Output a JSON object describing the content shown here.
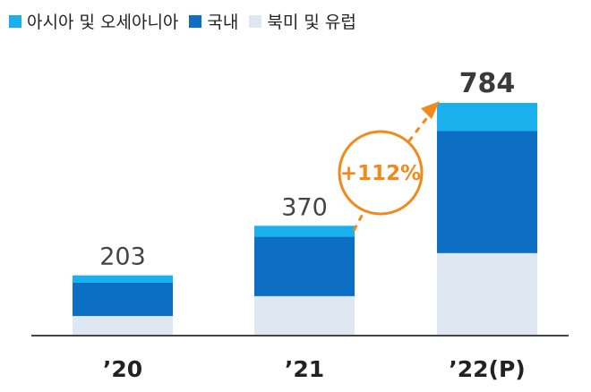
{
  "chart_data": {
    "type": "bar",
    "stacked": true,
    "categories": [
      "’20",
      "’21",
      "’22(P)"
    ],
    "series": [
      {
        "name": "북미 및 유럽",
        "values": [
          66,
          133,
          278
        ],
        "color": "#dfe7f2"
      },
      {
        "name": "국내",
        "values": [
          112,
          200,
          411
        ],
        "color": "#0d6fc4"
      },
      {
        "name": "아시아 및 오세아니아",
        "values": [
          25,
          37,
          95
        ],
        "color": "#1ab0ee"
      }
    ],
    "totals": [
      "203",
      "370",
      "784"
    ],
    "annotation": "+112%",
    "legend_order": [
      "아시아 및 오세아니아",
      "국내",
      "북미 및 유럽"
    ],
    "legend_position": "top-left",
    "ylim": [
      0,
      850
    ],
    "grid": false,
    "title": "",
    "xlabel": "",
    "ylabel": ""
  },
  "colors": {
    "axis": "#444444",
    "accent": "#f08a1c"
  }
}
